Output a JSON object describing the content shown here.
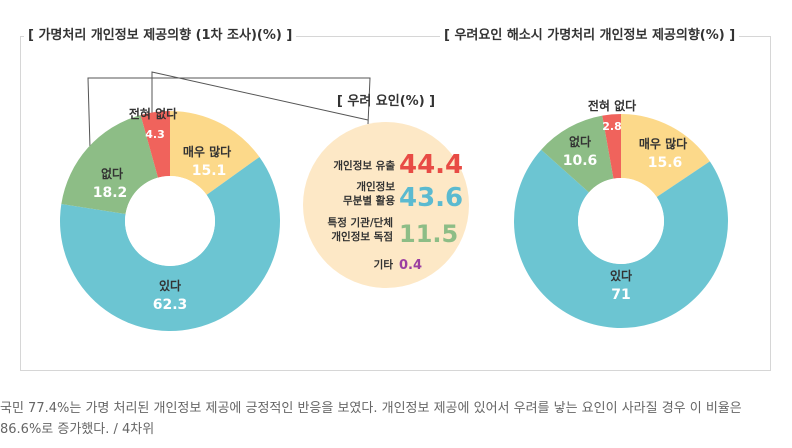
{
  "left_chart_title": "[ 가명처리 개인정보 제공의향 (1차 조사)(%) ]",
  "right_chart_title": "[ 우려요인 해소시 가명처리 개인정보 제공의향(%) ]",
  "middle_title": "[ 우려 요인(%) ]",
  "caption": "국민 77.4%는 가명 처리된 개인정보 제공에 긍정적인 반응을 보였다. 개인정보 제공에 있어서 우려를 낳는 요인이 사라질 경우 이 비율은 86.6%로 증가했다. / 4차위",
  "colors": {
    "very_much": "#fcd98a",
    "yes": "#6cc5d2",
    "no": "#8dbd86",
    "none": "#f0635c",
    "circle_bg": "#fde8c6"
  },
  "chart_data": [
    {
      "type": "pie",
      "title": "[ 가명처리 개인정보 제공의향 (1차 조사)(%) ]",
      "categories": [
        "매우 많다",
        "있다",
        "없다",
        "전혀 없다"
      ],
      "values": [
        15.1,
        62.3,
        18.2,
        4.3
      ]
    },
    {
      "type": "table",
      "title": "[ 우려 요인(%) ]",
      "categories": [
        "개인정보 유출",
        "개인정보 무분별 활용",
        "특정 기관/단체 개인정보 독점",
        "기타"
      ],
      "values": [
        44.4,
        43.6,
        11.5,
        0.4
      ],
      "value_labels": [
        "44.4",
        "43.6",
        "11.5",
        "0.4"
      ],
      "value_colors": [
        "#e84b45",
        "#5bbad0",
        "#8dbd86",
        "#9b3fa1"
      ]
    },
    {
      "type": "pie",
      "title": "[ 우려요인 해소시 가명처리 개인정보 제공의향(%) ]",
      "categories": [
        "매우 많다",
        "있다",
        "없다",
        "전혀 없다"
      ],
      "values": [
        15.6,
        71.0,
        10.6,
        2.8
      ]
    }
  ]
}
